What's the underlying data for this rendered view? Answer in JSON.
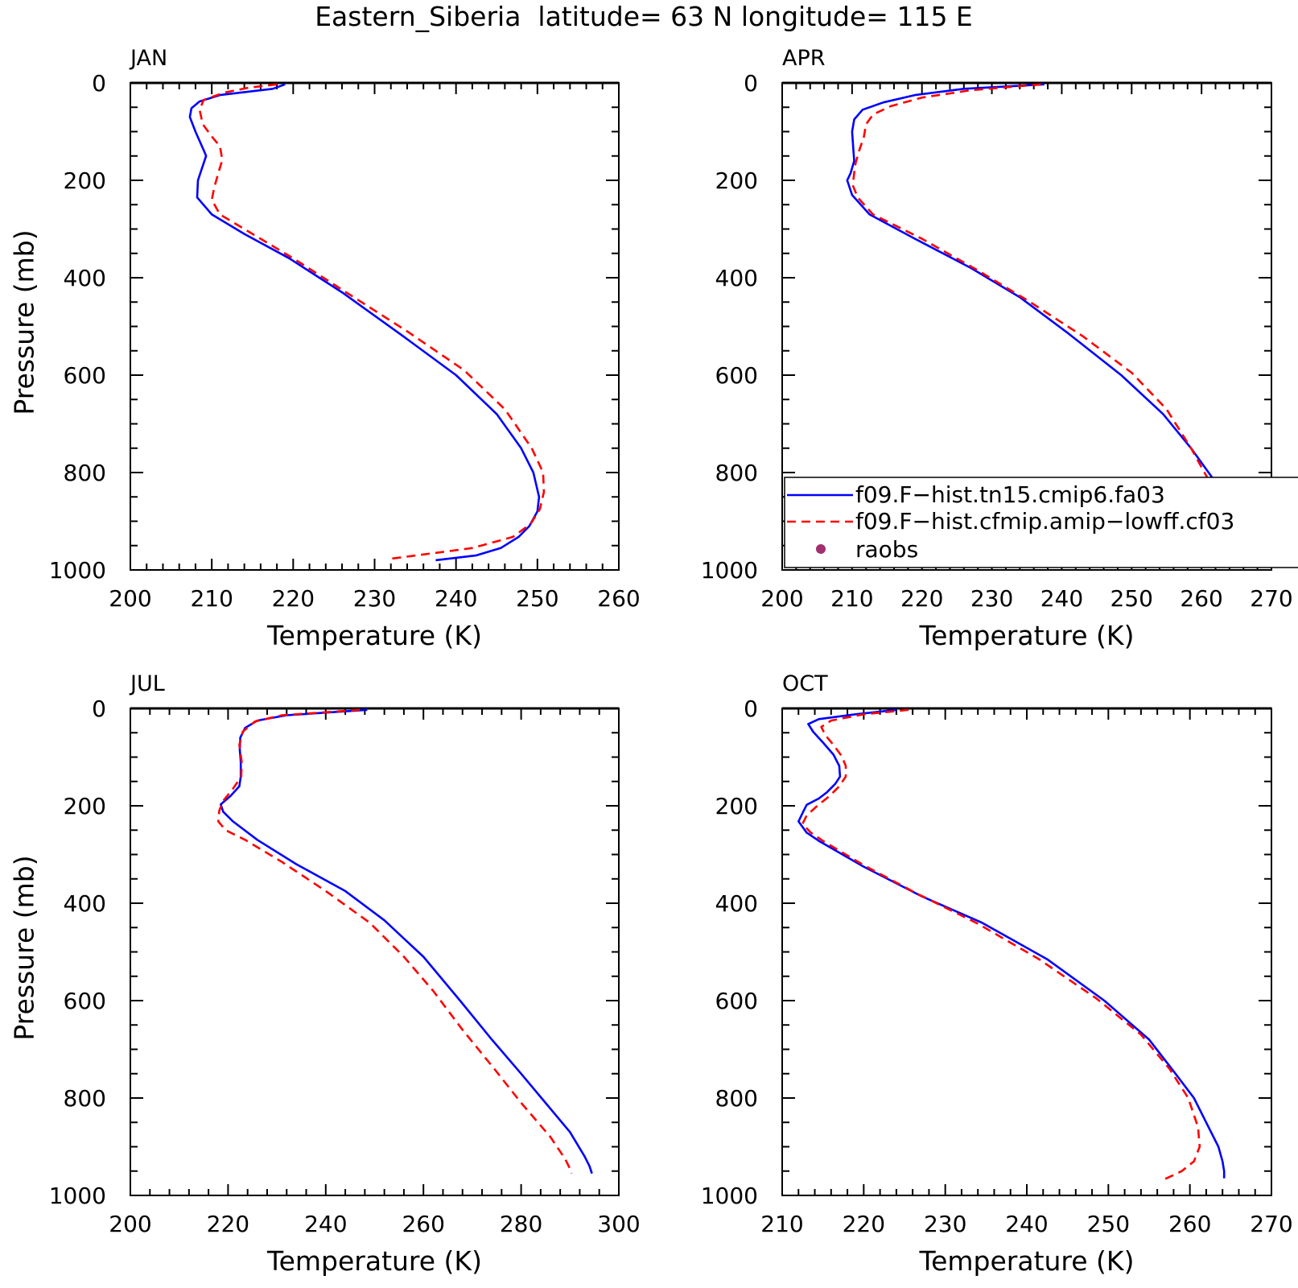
{
  "figure": {
    "title": "Eastern_Siberia  latitude= 63 N longitude= 115 E"
  },
  "legend": {
    "entries": [
      {
        "label": "f09.F−hist.tn15.cmip6.fa03",
        "color": "#0000ff",
        "style": "solid"
      },
      {
        "label": "f09.F−hist.cfmip.amip−lowff.cf03",
        "color": "#ff0000",
        "style": "dashed"
      },
      {
        "label": "raobs",
        "color": "#a0306e",
        "style": "marker"
      }
    ]
  },
  "chart_data": [
    {
      "type": "line",
      "panel": "JAN",
      "xlabel": "Temperature (K)",
      "ylabel": "Pressure (mb)",
      "xlim": [
        200,
        260
      ],
      "ylim": [
        1000,
        0
      ],
      "xticks": [
        200,
        210,
        220,
        230,
        240,
        250,
        260
      ],
      "yticks": [
        0,
        200,
        400,
        600,
        800,
        1000
      ],
      "series": [
        {
          "name": "f09.F−hist.tn15.cmip6.fa03",
          "color": "#0000ff",
          "dash": false,
          "points": [
            [
              219.0,
              3
            ],
            [
              217.5,
              12
            ],
            [
              211.0,
              25
            ],
            [
              208.5,
              38
            ],
            [
              207.5,
              52
            ],
            [
              207.3,
              70
            ],
            [
              208.0,
              100
            ],
            [
              209.0,
              138
            ],
            [
              209.3,
              150
            ],
            [
              208.8,
              175
            ],
            [
              208.3,
              200
            ],
            [
              208.2,
              235
            ],
            [
              210.0,
              270
            ],
            [
              214.0,
              310
            ],
            [
              219.5,
              360
            ],
            [
              226.0,
              430
            ],
            [
              233.5,
              520
            ],
            [
              240.0,
              600
            ],
            [
              245.0,
              680
            ],
            [
              248.0,
              750
            ],
            [
              249.5,
              800
            ],
            [
              250.2,
              850
            ],
            [
              250.0,
              880
            ],
            [
              249.0,
              910
            ],
            [
              247.7,
              932
            ],
            [
              245.5,
              955
            ],
            [
              242.5,
              970
            ],
            [
              237.5,
              980
            ]
          ]
        },
        {
          "name": "f09.F−hist.cfmip.amip−lowff.cf03",
          "color": "#ff0000",
          "dash": true,
          "points": [
            [
              218.0,
              3
            ],
            [
              214.5,
              10
            ],
            [
              211.5,
              20
            ],
            [
              209.0,
              35
            ],
            [
              208.5,
              55
            ],
            [
              208.9,
              85
            ],
            [
              210.0,
              110
            ],
            [
              211.0,
              130
            ],
            [
              211.3,
              158
            ],
            [
              210.8,
              185
            ],
            [
              210.3,
              215
            ],
            [
              210.0,
              240
            ],
            [
              211.0,
              270
            ],
            [
              215.0,
              310
            ],
            [
              220.0,
              360
            ],
            [
              226.5,
              430
            ],
            [
              234.0,
              510
            ],
            [
              241.0,
              590
            ],
            [
              246.0,
              670
            ],
            [
              249.3,
              750
            ],
            [
              250.7,
              800
            ],
            [
              250.8,
              840
            ],
            [
              250.3,
              875
            ],
            [
              249.2,
              905
            ],
            [
              247.0,
              932
            ],
            [
              242.0,
              955
            ],
            [
              237.5,
              965
            ],
            [
              231.5,
              978
            ]
          ]
        }
      ]
    },
    {
      "type": "line",
      "panel": "APR",
      "xlabel": "Temperature (K)",
      "ylabel": "",
      "xlim": [
        200,
        270
      ],
      "ylim": [
        1000,
        0
      ],
      "xticks": [
        200,
        210,
        220,
        230,
        240,
        250,
        260,
        270
      ],
      "yticks": [
        0,
        200,
        400,
        600,
        800,
        1000
      ],
      "series": [
        {
          "name": "f09.F−hist.tn15.cmip6.fa03",
          "color": "#0000ff",
          "dash": false,
          "points": [
            [
              237.5,
              3
            ],
            [
              226.0,
              12
            ],
            [
              219.0,
              25
            ],
            [
              214.5,
              40
            ],
            [
              211.5,
              55
            ],
            [
              210.3,
              75
            ],
            [
              210.0,
              100
            ],
            [
              210.2,
              140
            ],
            [
              210.3,
              160
            ],
            [
              209.8,
              185
            ],
            [
              209.3,
              200
            ],
            [
              210.0,
              230
            ],
            [
              212.5,
              270
            ],
            [
              219.0,
              320
            ],
            [
              227.0,
              380
            ],
            [
              234.0,
              440
            ],
            [
              241.0,
              515
            ],
            [
              248.5,
              600
            ],
            [
              254.5,
              680
            ],
            [
              258.5,
              750
            ],
            [
              261.5,
              810
            ],
            [
              263.5,
              865
            ],
            [
              265.0,
              910
            ],
            [
              266.5,
              950
            ],
            [
              267.5,
              975
            ]
          ]
        },
        {
          "name": "f09.F−hist.cfmip.amip−lowff.cf03",
          "color": "#ff0000",
          "dash": true,
          "points": [
            [
              237.0,
              3
            ],
            [
              227.0,
              15
            ],
            [
              220.0,
              30
            ],
            [
              215.5,
              48
            ],
            [
              213.0,
              65
            ],
            [
              212.0,
              85
            ],
            [
              211.7,
              110
            ],
            [
              211.0,
              140
            ],
            [
              210.5,
              165
            ],
            [
              210.3,
              185
            ],
            [
              210.1,
              210
            ],
            [
              210.8,
              235
            ],
            [
              213.0,
              270
            ],
            [
              220.0,
              320
            ],
            [
              228.0,
              385
            ],
            [
              235.5,
              450
            ],
            [
              243.0,
              520
            ],
            [
              250.0,
              595
            ],
            [
              255.0,
              670
            ],
            [
              258.5,
              750
            ],
            [
              260.8,
              810
            ],
            [
              262.5,
              870
            ],
            [
              263.6,
              920
            ],
            [
              264.2,
              955
            ],
            [
              264.5,
              965
            ]
          ]
        }
      ]
    },
    {
      "type": "line",
      "panel": "JUL",
      "xlabel": "Temperature (K)",
      "ylabel": "Pressure (mb)",
      "xlim": [
        200,
        300
      ],
      "ylim": [
        1000,
        0
      ],
      "xticks": [
        200,
        220,
        240,
        260,
        280,
        300
      ],
      "yticks": [
        0,
        200,
        400,
        600,
        800,
        1000
      ],
      "series": [
        {
          "name": "f09.F−hist.tn15.cmip6.fa03",
          "color": "#0000ff",
          "dash": false,
          "points": [
            [
              248.5,
              3
            ],
            [
              232.0,
              14
            ],
            [
              226.0,
              25
            ],
            [
              223.5,
              40
            ],
            [
              222.5,
              60
            ],
            [
              222.4,
              85
            ],
            [
              222.6,
              110
            ],
            [
              222.6,
              140
            ],
            [
              222.3,
              160
            ],
            [
              220.5,
              180
            ],
            [
              218.5,
              197
            ],
            [
              219.0,
              212
            ],
            [
              221.0,
              232
            ],
            [
              226.0,
              270
            ],
            [
              234.0,
              320
            ],
            [
              244.0,
              375
            ],
            [
              252.0,
              435
            ],
            [
              260.0,
              510
            ],
            [
              267.5,
              600
            ],
            [
              274.0,
              680
            ],
            [
              280.0,
              750
            ],
            [
              285.0,
              810
            ],
            [
              290.0,
              870
            ],
            [
              293.0,
              920
            ],
            [
              294.0,
              940
            ],
            [
              294.5,
              955
            ]
          ]
        },
        {
          "name": "f09.F−hist.cfmip.amip−lowff.cf03",
          "color": "#ff0000",
          "dash": true,
          "points": [
            [
              247.0,
              3
            ],
            [
              231.0,
              14
            ],
            [
              225.5,
              27
            ],
            [
              223.0,
              48
            ],
            [
              222.3,
              75
            ],
            [
              222.8,
              110
            ],
            [
              222.7,
              140
            ],
            [
              221.0,
              165
            ],
            [
              219.0,
              190
            ],
            [
              218.2,
              210
            ],
            [
              218.0,
              232
            ],
            [
              219.5,
              250
            ],
            [
              223.5,
              270
            ],
            [
              231.0,
              315
            ],
            [
              240.0,
              375
            ],
            [
              249.0,
              440
            ],
            [
              256.0,
              510
            ],
            [
              262.0,
              580
            ],
            [
              268.0,
              660
            ],
            [
              274.5,
              740
            ],
            [
              280.0,
              810
            ],
            [
              286.0,
              880
            ],
            [
              289.0,
              925
            ],
            [
              290.0,
              945
            ],
            [
              290.3,
              955
            ]
          ]
        }
      ]
    },
    {
      "type": "line",
      "panel": "OCT",
      "xlabel": "Temperature (K)",
      "ylabel": "",
      "xlim": [
        210,
        270
      ],
      "ylim": [
        1000,
        0
      ],
      "xticks": [
        210,
        220,
        230,
        240,
        250,
        260,
        270
      ],
      "yticks": [
        0,
        200,
        400,
        600,
        800,
        1000
      ],
      "series": [
        {
          "name": "f09.F−hist.tn15.cmip6.fa03",
          "color": "#0000ff",
          "dash": false,
          "points": [
            [
              224.0,
              3
            ],
            [
              219.0,
              12
            ],
            [
              214.5,
              22
            ],
            [
              213.2,
              32
            ],
            [
              213.8,
              48
            ],
            [
              215.0,
              70
            ],
            [
              216.3,
              95
            ],
            [
              217.0,
              118
            ],
            [
              217.1,
              140
            ],
            [
              216.5,
              155
            ],
            [
              215.5,
              172
            ],
            [
              214.5,
              185
            ],
            [
              213.0,
              198
            ],
            [
              212.5,
              215
            ],
            [
              212.0,
              232
            ],
            [
              213.0,
              255
            ],
            [
              214.5,
              272
            ],
            [
              220.0,
              325
            ],
            [
              227.0,
              385
            ],
            [
              234.5,
              440
            ],
            [
              242.5,
              515
            ],
            [
              249.5,
              600
            ],
            [
              255.0,
              680
            ],
            [
              258.0,
              745
            ],
            [
              260.5,
              800
            ],
            [
              262.0,
              850
            ],
            [
              263.5,
              900
            ],
            [
              264.0,
              930
            ],
            [
              264.2,
              950
            ],
            [
              264.2,
              965
            ]
          ]
        },
        {
          "name": "f09.F−hist.cfmip.amip−lowff.cf03",
          "color": "#ff0000",
          "dash": true,
          "points": [
            [
              225.5,
              3
            ],
            [
              220.0,
              12
            ],
            [
              216.0,
              25
            ],
            [
              214.8,
              38
            ],
            [
              215.3,
              55
            ],
            [
              216.3,
              75
            ],
            [
              217.3,
              98
            ],
            [
              217.8,
              118
            ],
            [
              217.8,
              140
            ],
            [
              217.0,
              160
            ],
            [
              215.8,
              180
            ],
            [
              214.3,
              200
            ],
            [
              213.0,
              220
            ],
            [
              212.5,
              237
            ],
            [
              213.5,
              255
            ],
            [
              215.0,
              272
            ],
            [
              220.0,
              322
            ],
            [
              226.5,
              380
            ],
            [
              234.0,
              442
            ],
            [
              241.5,
              515
            ],
            [
              248.5,
              595
            ],
            [
              254.0,
              670
            ],
            [
              257.5,
              740
            ],
            [
              259.8,
              800
            ],
            [
              261.0,
              860
            ],
            [
              261.2,
              900
            ],
            [
              260.5,
              930
            ],
            [
              259.0,
              950
            ],
            [
              256.5,
              970
            ]
          ]
        }
      ]
    }
  ]
}
